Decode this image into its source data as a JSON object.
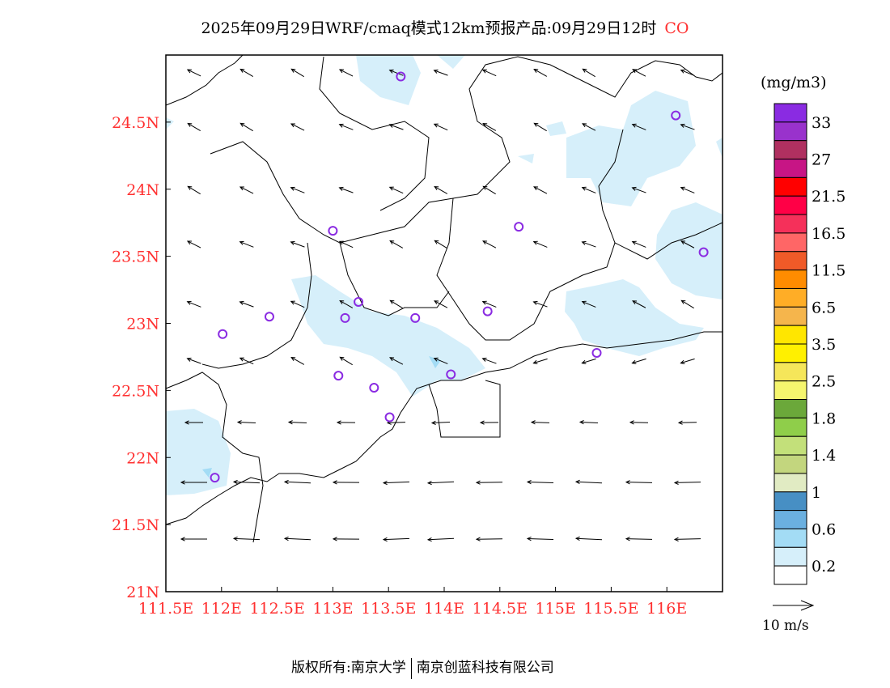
{
  "title": {
    "text": "2025年09月29日WRF/cmaq模式12km预报产品:09月29日12时",
    "pollutant": "CO"
  },
  "footer": {
    "left": "版权所有:南京大学",
    "right": "南京创蓝科技有限公司"
  },
  "chart_data": {
    "type": "heatmap",
    "title": "2025年09月29日WRF/cmaq模式12km预报产品:09月29日12时 CO",
    "lon_range": [
      111.5,
      116.5
    ],
    "lat_range": [
      21.0,
      25.0
    ],
    "x_ticks": [
      "111.5E",
      "112E",
      "112.5E",
      "113E",
      "113.5E",
      "114E",
      "114.5E",
      "115E",
      "115.5E",
      "116E"
    ],
    "x_tick_values": [
      111.5,
      112,
      112.5,
      113,
      113.5,
      114,
      114.5,
      115,
      115.5,
      116
    ],
    "y_ticks": [
      "21N",
      "21.5N",
      "22N",
      "22.5N",
      "23N",
      "23.5N",
      "24N",
      "24.5N"
    ],
    "y_tick_values": [
      21,
      21.5,
      22,
      22.5,
      23,
      23.5,
      24,
      24.5
    ],
    "colorbar": {
      "units": "(mg/m3)",
      "labels": [
        "33",
        "27",
        "21.5",
        "16.5",
        "11.5",
        "6.5",
        "3.5",
        "2.5",
        "1.8",
        "1.4",
        "1",
        "0.6",
        "0.2"
      ],
      "colors": [
        "#8a2be2",
        "#9932cc",
        "#b03060",
        "#c71585",
        "#ff0000",
        "#ff0046",
        "#f5305a",
        "#ff6666",
        "#f05a28",
        "#ff8c00",
        "#ffad26",
        "#f5b54c",
        "#ffe600",
        "#fff000",
        "#f5e65a",
        "#f5f56e",
        "#6ba83a",
        "#8fce4a",
        "#c3e07a",
        "#c3d67e",
        "#e1ebc3",
        "#478fc4",
        "#6bb0e0",
        "#a3dcf5",
        "#d6effa",
        "#ffffff"
      ]
    },
    "vector_legend": "10 m/s",
    "stations": [
      [
        113.61,
        24.84
      ],
      [
        116.08,
        24.55
      ],
      [
        113.0,
        23.69
      ],
      [
        114.67,
        23.72
      ],
      [
        116.33,
        23.53
      ],
      [
        112.43,
        23.05
      ],
      [
        113.23,
        23.16
      ],
      [
        113.11,
        23.04
      ],
      [
        113.74,
        23.04
      ],
      [
        114.39,
        23.09
      ],
      [
        112.01,
        22.92
      ],
      [
        115.37,
        22.78
      ],
      [
        113.05,
        22.61
      ],
      [
        114.06,
        22.62
      ],
      [
        113.37,
        22.52
      ],
      [
        113.51,
        22.3
      ],
      [
        111.94,
        21.85
      ]
    ],
    "station_color": "#8a2be2"
  }
}
